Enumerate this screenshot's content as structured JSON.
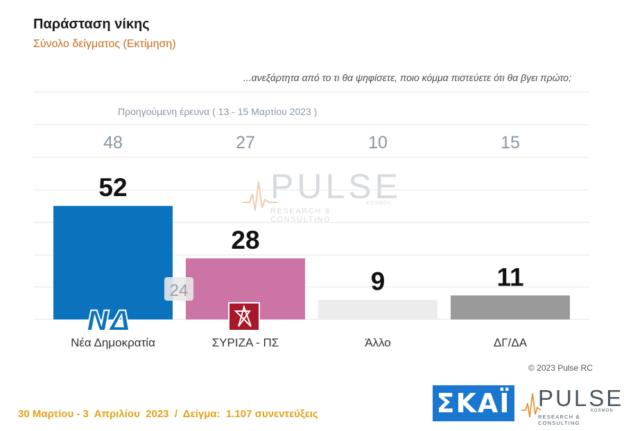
{
  "header": {
    "title": "Παράσταση νίκης",
    "subtitle": "Σύνολο δείγματος   (Εκτίμηση)",
    "question": "...ανεξάρτητα από το τι θα ψηφίσετε, ποιο κόμμα πιστεύετε ότι θα βγει πρώτο;",
    "previous_survey_label": "Προηγούμενη έρευνα  ( 13 - 15 Μαρτίου  2023 )"
  },
  "chart_data": {
    "type": "bar",
    "categories": [
      "Νέα Δημοκρατία",
      "ΣΥΡΙΖΑ - ΠΣ",
      "Άλλο",
      "ΔΓ/ΔΑ"
    ],
    "values": [
      52,
      28,
      9,
      11
    ],
    "previous_values": [
      48,
      27,
      10,
      15
    ],
    "inline_annotation": {
      "category": "Νέα Δημοκρατία",
      "value": "24"
    },
    "colors": [
      "#0b73bd",
      "#cc74a6",
      "#ececec",
      "#9a9a9a"
    ],
    "ylim": [
      0,
      60
    ],
    "grid": true
  },
  "logos": {
    "nd": "ΝΔ",
    "syriza_icon": "syriza-star-icon",
    "skai": "ΣΚΑΪ",
    "pulse": "PULSE",
    "pulse_sub": "KOSMON",
    "pulse_tagline": "RESEARCH & CONSULTING"
  },
  "footer": {
    "copyright": "© 2023 Pulse RC",
    "fieldwork": "30 Μαρτίου - 3  Απριλίου  2023  /  Δείγμα:  1.107 συνεντεύξεις"
  }
}
